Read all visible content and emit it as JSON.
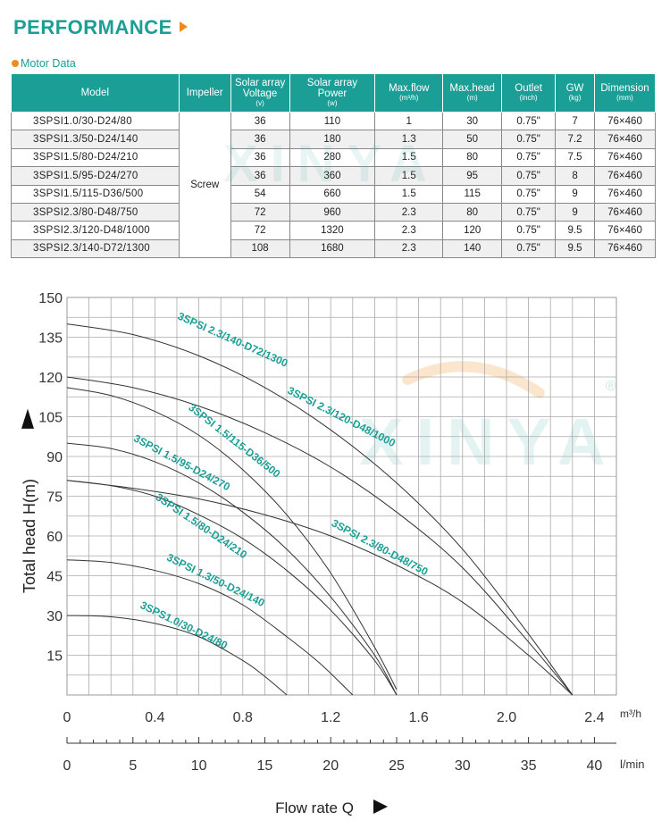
{
  "heading": "PERFORMANCE",
  "subheading": "Motor Data",
  "colors": {
    "accent": "#1a9e95",
    "orange": "#f08a1c",
    "curve": "#333333",
    "grid": "#aaaaaa"
  },
  "table": {
    "headers": [
      {
        "label": "Model",
        "unit": ""
      },
      {
        "label": "Impeller",
        "unit": ""
      },
      {
        "label": "Solar array Voltage",
        "unit": "(v)"
      },
      {
        "label": "Solar array Power",
        "unit": "(w)"
      },
      {
        "label": "Max.flow",
        "unit": "(m³/h)"
      },
      {
        "label": "Max.head",
        "unit": "(m)"
      },
      {
        "label": "Outlet",
        "unit": "(inch)"
      },
      {
        "label": "GW",
        "unit": "(kg)"
      },
      {
        "label": "Dimension",
        "unit": "(mm)"
      }
    ],
    "impeller": "Screw",
    "rows": [
      {
        "model": "3SPSI1.0/30-D24/80",
        "voltage": "36",
        "power": "110",
        "flow": "1",
        "head": "30",
        "outlet": "0.75\"",
        "gw": "7",
        "dimension": "76×460"
      },
      {
        "model": "3SPSI1.3/50-D24/140",
        "voltage": "36",
        "power": "180",
        "flow": "1.3",
        "head": "50",
        "outlet": "0.75\"",
        "gw": "7.2",
        "dimension": "76×460"
      },
      {
        "model": "3SPSI1.5/80-D24/210",
        "voltage": "36",
        "power": "280",
        "flow": "1.5",
        "head": "80",
        "outlet": "0.75\"",
        "gw": "7.5",
        "dimension": "76×460"
      },
      {
        "model": "3SPSI1.5/95-D24/270",
        "voltage": "36",
        "power": "360",
        "flow": "1.5",
        "head": "95",
        "outlet": "0.75\"",
        "gw": "8",
        "dimension": "76×460"
      },
      {
        "model": "3SPSI1.5/115-D36/500",
        "voltage": "54",
        "power": "660",
        "flow": "1.5",
        "head": "115",
        "outlet": "0.75\"",
        "gw": "9",
        "dimension": "76×460"
      },
      {
        "model": "3SPSI2.3/80-D48/750",
        "voltage": "72",
        "power": "960",
        "flow": "2.3",
        "head": "80",
        "outlet": "0.75\"",
        "gw": "9",
        "dimension": "76×460"
      },
      {
        "model": "3SPSI2.3/120-D48/1000",
        "voltage": "72",
        "power": "1320",
        "flow": "2.3",
        "head": "120",
        "outlet": "0.75\"",
        "gw": "9.5",
        "dimension": "76×460"
      },
      {
        "model": "3SPSI2.3/140-D72/1300",
        "voltage": "108",
        "power": "1680",
        "flow": "2.3",
        "head": "140",
        "outlet": "0.75\"",
        "gw": "9.5",
        "dimension": "76×460"
      }
    ]
  },
  "chart_data": {
    "type": "line",
    "ylabel": "Total head H(m)",
    "xlabel": "Flow rate Q",
    "ylim": [
      0,
      150
    ],
    "yticks": [
      15,
      30,
      45,
      60,
      75,
      90,
      105,
      120,
      135,
      150
    ],
    "xlim": [
      0,
      2.5
    ],
    "xticks_m3h": [
      "0",
      "0.4",
      "0.8",
      "1.2",
      "1.6",
      "2.0",
      "2.4"
    ],
    "xticks_m3h_values": [
      0,
      0.4,
      0.8,
      1.2,
      1.6,
      2.0,
      2.4
    ],
    "x_unit_m3h": "m³/h",
    "xticks_lmin": [
      "0",
      "5",
      "10",
      "15",
      "20",
      "25",
      "30",
      "35",
      "40"
    ],
    "xticks_lmin_values": [
      0,
      5,
      10,
      15,
      20,
      25,
      30,
      35,
      40
    ],
    "x_unit_lmin": "l/min",
    "grid": true,
    "series": [
      {
        "name": "3SPS1.0/30-D24/80",
        "x": [
          0,
          0.2,
          0.4,
          0.6,
          0.8,
          0.9,
          1.0
        ],
        "y": [
          30,
          29.5,
          27,
          22,
          13,
          7,
          0
        ]
      },
      {
        "name": "3SPSI 1.3/50-D24/140",
        "x": [
          0,
          0.2,
          0.4,
          0.6,
          0.8,
          1.0,
          1.15,
          1.3
        ],
        "y": [
          51,
          50,
          47,
          42,
          34,
          22,
          12,
          0
        ]
      },
      {
        "name": "3SPSI 1.5/80-D24/210",
        "x": [
          0,
          0.2,
          0.4,
          0.6,
          0.8,
          1.0,
          1.2,
          1.4,
          1.5
        ],
        "y": [
          81,
          79,
          75,
          68,
          59,
          47,
          32,
          13,
          0
        ]
      },
      {
        "name": "3SPSI 1.5/95-D24/270",
        "x": [
          0,
          0.2,
          0.4,
          0.6,
          0.8,
          1.0,
          1.2,
          1.4,
          1.5
        ],
        "y": [
          95,
          93,
          88,
          80,
          69,
          55,
          37,
          15,
          0
        ]
      },
      {
        "name": "3SPSI 1.5/115-D36/500",
        "x": [
          0,
          0.2,
          0.4,
          0.6,
          0.8,
          1.0,
          1.2,
          1.4,
          1.5
        ],
        "y": [
          116,
          113,
          107,
          98,
          85,
          68,
          46,
          18,
          2
        ]
      },
      {
        "name": "3SPSI 2.3/80-D48/750",
        "x": [
          0,
          0.3,
          0.6,
          0.9,
          1.2,
          1.5,
          1.8,
          2.1,
          2.3
        ],
        "y": [
          81,
          78,
          74,
          68,
          60,
          49,
          35,
          15,
          0
        ]
      },
      {
        "name": "3SPSI 2.3/120-D48/1000",
        "x": [
          0,
          0.3,
          0.6,
          0.9,
          1.2,
          1.5,
          1.8,
          2.1,
          2.3
        ],
        "y": [
          120,
          116,
          109,
          99,
          86,
          69,
          48,
          20,
          0
        ]
      },
      {
        "name": "3SPSI 2.3/140-D72/1300",
        "x": [
          0,
          0.3,
          0.6,
          0.9,
          1.2,
          1.5,
          1.8,
          2.1,
          2.3
        ],
        "y": [
          140,
          136,
          128,
          116,
          100,
          80,
          55,
          23,
          0
        ]
      }
    ],
    "curve_labels": [
      {
        "text": "3SPSI 2.3/140-D72/1300",
        "series": 7,
        "x": 0.5,
        "y": 142,
        "angle": 24
      },
      {
        "text": "3SPSI 2.3/120-D48/1000",
        "series": 6,
        "x": 1.0,
        "y": 114,
        "angle": 27
      },
      {
        "text": "3SPSI 1.5/115-D36/500",
        "series": 4,
        "x": 0.55,
        "y": 108,
        "angle": 38
      },
      {
        "text": "3SPSI 1.5/95-D24/270",
        "series": 3,
        "x": 0.3,
        "y": 96,
        "angle": 28
      },
      {
        "text": "3SPSI 1.5/80-D24/210",
        "series": 2,
        "x": 0.4,
        "y": 74,
        "angle": 34
      },
      {
        "text": "3SPSI 2.3/80-D48/750",
        "series": 5,
        "x": 1.2,
        "y": 64,
        "angle": 28
      },
      {
        "text": "3SPSI 1.3/50-D24/140",
        "series": 1,
        "x": 0.45,
        "y": 51,
        "angle": 26
      },
      {
        "text": "3SPS1.0/30-D24/80",
        "series": 0,
        "x": 0.33,
        "y": 33,
        "angle": 26
      }
    ]
  },
  "watermark": "XINYA",
  "watermark_mark": "®"
}
